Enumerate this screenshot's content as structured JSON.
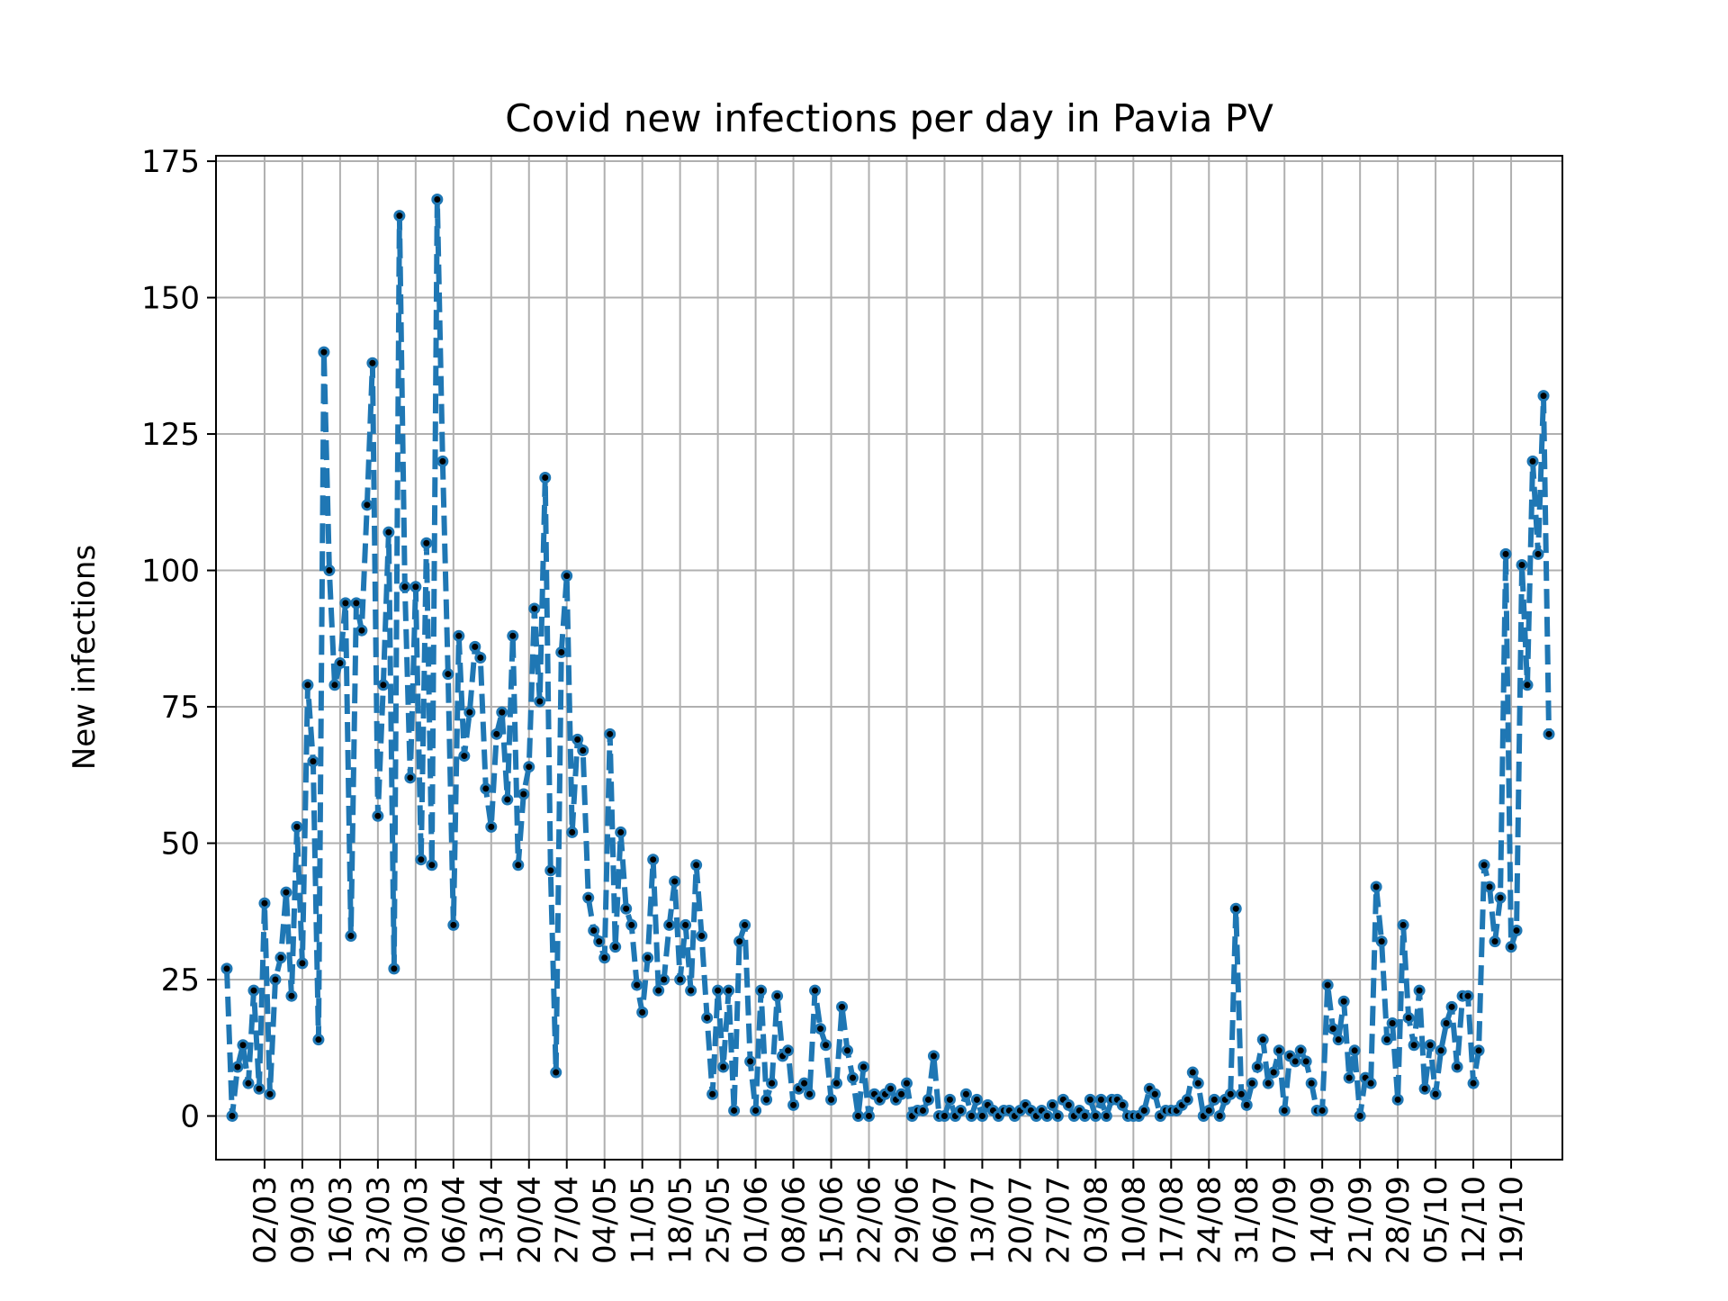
{
  "chart_data": {
    "type": "line",
    "title": "Covid new infections per day in Pavia PV",
    "xlabel": "",
    "ylabel": "New infections",
    "x_start": "2020-02-24",
    "x_unit": "day",
    "ylim": [
      -8,
      176
    ],
    "yticks": [
      0,
      25,
      50,
      75,
      100,
      125,
      150,
      175
    ],
    "xtick_labels": [
      "02/03",
      "09/03",
      "16/03",
      "23/03",
      "30/03",
      "06/04",
      "13/04",
      "20/04",
      "27/04",
      "04/05",
      "11/05",
      "18/05",
      "25/05",
      "01/06",
      "08/06",
      "15/06",
      "22/06",
      "29/06",
      "06/07",
      "13/07",
      "20/07",
      "27/07",
      "03/08",
      "10/08",
      "17/08",
      "24/08",
      "31/08",
      "07/09",
      "14/09",
      "21/09",
      "28/09",
      "05/10",
      "12/10",
      "19/10"
    ],
    "grid": true,
    "legend": "none",
    "series": [
      {
        "line_style": "dashed",
        "color": "#1f77b4",
        "marker_color": "#000000",
        "values": [
          27,
          0,
          9,
          13,
          6,
          23,
          5,
          39,
          4,
          25,
          29,
          41,
          22,
          53,
          28,
          79,
          65,
          14,
          140,
          100,
          79,
          83,
          94,
          33,
          94,
          89,
          112,
          138,
          55,
          79,
          107,
          27,
          165,
          97,
          62,
          97,
          47,
          105,
          46,
          168,
          120,
          81,
          35,
          88,
          66,
          74,
          86,
          84,
          60,
          53,
          70,
          74,
          58,
          88,
          46,
          59,
          64,
          93,
          76,
          117,
          45,
          8,
          85,
          99,
          52,
          69,
          67,
          40,
          34,
          32,
          29,
          70,
          31,
          52,
          38,
          35,
          24,
          19,
          29,
          47,
          23,
          25,
          35,
          43,
          25,
          35,
          23,
          46,
          33,
          18,
          4,
          23,
          9,
          23,
          1,
          32,
          35,
          10,
          1,
          23,
          3,
          6,
          22,
          11,
          12,
          2,
          5,
          6,
          4,
          23,
          16,
          13,
          3,
          6,
          20,
          12,
          7,
          0,
          9,
          0,
          4,
          3,
          4,
          5,
          3,
          4,
          6,
          0,
          1,
          1,
          3,
          11,
          0,
          0,
          3,
          0,
          1,
          4,
          0,
          3,
          0,
          2,
          1,
          0,
          1,
          1,
          0,
          1,
          2,
          1,
          0,
          1,
          0,
          2,
          0,
          3,
          2,
          0,
          1,
          0,
          3,
          0,
          3,
          0,
          3,
          3,
          2,
          0,
          0,
          0,
          1,
          5,
          4,
          0,
          1,
          1,
          1,
          2,
          3,
          8,
          6,
          0,
          1,
          3,
          0,
          3,
          4,
          38,
          4,
          2,
          6,
          9,
          14,
          6,
          8,
          12,
          1,
          11,
          10,
          12,
          10,
          6,
          1,
          1,
          24,
          16,
          14,
          21,
          7,
          12,
          0,
          7,
          6,
          42,
          32,
          14,
          17,
          3,
          35,
          18,
          13,
          23,
          5,
          13,
          4,
          12,
          17,
          20,
          9,
          22,
          22,
          6,
          12,
          46,
          42,
          32,
          40,
          103,
          31,
          34,
          101,
          79,
          120,
          103,
          132,
          70
        ]
      }
    ]
  }
}
